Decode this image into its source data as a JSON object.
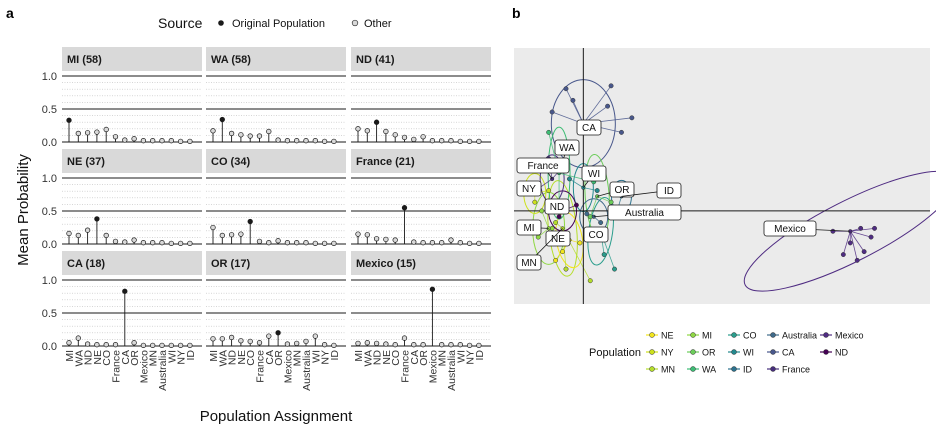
{
  "panel_a": {
    "label": "a",
    "legend": {
      "title": "Source",
      "items": [
        {
          "label": "Original Population",
          "color": "#1a1a1a"
        },
        {
          "label": "Other",
          "color": "#d9d9d9"
        }
      ]
    },
    "ylabel": "Mean Probability",
    "xlabel": "Population Assignment"
  },
  "panel_b": {
    "label": "b",
    "legend": {
      "title": "Population",
      "items": [
        {
          "label": "NE",
          "color": "#f2e51d"
        },
        {
          "label": "MI",
          "color": "#8fd744"
        },
        {
          "label": "CO",
          "color": "#2a9d8c"
        },
        {
          "label": "Australia",
          "color": "#3f6a8a"
        },
        {
          "label": "Mexico",
          "color": "#4f2c82"
        },
        {
          "label": "NY",
          "color": "#cde11d"
        },
        {
          "label": "OR",
          "color": "#6ccd5a"
        },
        {
          "label": "WI",
          "color": "#23888e"
        },
        {
          "label": "CA",
          "color": "#48578b"
        },
        {
          "label": "ND",
          "color": "#440154"
        },
        {
          "label": "MN",
          "color": "#b5de2b"
        },
        {
          "label": "WA",
          "color": "#3dbc74"
        },
        {
          "label": "ID",
          "color": "#2c728e"
        },
        {
          "label": "France",
          "color": "#472e7c"
        }
      ]
    },
    "point_labels": [
      "CA",
      "WA",
      "France",
      "WI",
      "NY",
      "OR",
      "ID",
      "ND",
      "Australia",
      "Mexico",
      "MI",
      "NE",
      "CO",
      "MN"
    ]
  },
  "chart_data": [
    {
      "type": "lollipop",
      "title": "",
      "xlabel": "Population Assignment",
      "ylabel": "Mean Probability",
      "ylim": [
        0,
        1
      ],
      "yticks": [
        0.0,
        0.5,
        1.0
      ],
      "yticklabels": [
        "0.0",
        "0.5",
        "1.0"
      ],
      "categories": [
        "MI",
        "WA",
        "ND",
        "NE",
        "CO",
        "France",
        "CA",
        "OR",
        "Mexico",
        "MN",
        "Australia",
        "WI",
        "NY",
        "ID"
      ],
      "facets": [
        {
          "title": "MI (58)",
          "original": "MI",
          "values": [
            0.33,
            0.13,
            0.14,
            0.15,
            0.19,
            0.08,
            0.03,
            0.05,
            0.02,
            0.02,
            0.02,
            0.02,
            0.01,
            0.01
          ]
        },
        {
          "title": "WA (58)",
          "original": "WA",
          "values": [
            0.17,
            0.34,
            0.13,
            0.11,
            0.09,
            0.09,
            0.16,
            0.03,
            0.02,
            0.02,
            0.02,
            0.02,
            0.01,
            0.01
          ]
        },
        {
          "title": "ND (41)",
          "original": "ND",
          "values": [
            0.2,
            0.17,
            0.3,
            0.16,
            0.11,
            0.07,
            0.04,
            0.08,
            0.02,
            0.02,
            0.02,
            0.01,
            0.01,
            0.01
          ]
        },
        {
          "title": "NE (37)",
          "original": "NE",
          "values": [
            0.16,
            0.13,
            0.21,
            0.38,
            0.13,
            0.04,
            0.03,
            0.06,
            0.02,
            0.02,
            0.02,
            0.01,
            0.01,
            0.01
          ]
        },
        {
          "title": "CO (34)",
          "original": "CO",
          "values": [
            0.25,
            0.13,
            0.14,
            0.15,
            0.34,
            0.04,
            0.02,
            0.05,
            0.02,
            0.02,
            0.02,
            0.01,
            0.01,
            0.01
          ]
        },
        {
          "title": "France (21)",
          "original": "France",
          "values": [
            0.15,
            0.14,
            0.08,
            0.07,
            0.06,
            0.55,
            0.03,
            0.02,
            0.02,
            0.02,
            0.06,
            0.02,
            0.01,
            0.01
          ]
        },
        {
          "title": "CA (18)",
          "original": "CA",
          "values": [
            0.05,
            0.12,
            0.03,
            0.02,
            0.02,
            0.02,
            0.83,
            0.05,
            0.01,
            0.01,
            0.01,
            0.01,
            0.01,
            0.01
          ]
        },
        {
          "title": "OR (17)",
          "original": "OR",
          "values": [
            0.11,
            0.11,
            0.13,
            0.08,
            0.07,
            0.05,
            0.15,
            0.2,
            0.03,
            0.04,
            0.07,
            0.15,
            0.02,
            0.01
          ]
        },
        {
          "title": "Mexico (15)",
          "original": "Mexico",
          "values": [
            0.04,
            0.05,
            0.04,
            0.03,
            0.02,
            0.12,
            0.02,
            0.02,
            0.86,
            0.02,
            0.02,
            0.02,
            0.01,
            0.01
          ]
        }
      ],
      "legend": {
        "title": "Source",
        "placement": "top",
        "entries": [
          "Original Population",
          "Other"
        ]
      }
    },
    {
      "type": "scatter",
      "subtype": "ordination-biplot",
      "title": "",
      "xlim": [
        -1,
        5
      ],
      "ylim": [
        -1.6,
        2.8
      ],
      "grid": false,
      "legend": {
        "title": "Population",
        "placement": "bottom"
      },
      "centroids": [
        {
          "group": "NE",
          "x": -0.2,
          "y": -0.5
        },
        {
          "group": "MI",
          "x": -0.5,
          "y": -0.3
        },
        {
          "group": "ND",
          "x": -0.3,
          "y": 0.0
        },
        {
          "group": "NY",
          "x": -0.7,
          "y": 0.3
        },
        {
          "group": "OR",
          "x": 0.2,
          "y": 0.25
        },
        {
          "group": "MN",
          "x": -0.3,
          "y": -0.3
        },
        {
          "group": "WA",
          "x": -0.35,
          "y": 0.65
        },
        {
          "group": "CO",
          "x": 0.25,
          "y": -0.35
        },
        {
          "group": "WI",
          "x": 0.0,
          "y": 0.4
        },
        {
          "group": "ID",
          "x": 0.55,
          "y": 0.25
        },
        {
          "group": "Australia",
          "x": 0.15,
          "y": -0.1
        },
        {
          "group": "CA",
          "x": 0.0,
          "y": 1.5
        },
        {
          "group": "France",
          "x": -0.45,
          "y": 0.55
        },
        {
          "group": "Mexico",
          "x": 3.85,
          "y": -0.35
        }
      ],
      "points": [
        {
          "group": "CA",
          "x": 0.4,
          "y": 2.15
        },
        {
          "group": "CA",
          "x": -0.25,
          "y": 2.1
        },
        {
          "group": "CA",
          "x": 0.7,
          "y": 1.6
        },
        {
          "group": "CA",
          "x": -0.45,
          "y": 1.7
        },
        {
          "group": "CA",
          "x": 0.35,
          "y": 1.8
        },
        {
          "group": "CA",
          "x": 0.55,
          "y": 1.35
        },
        {
          "group": "CA",
          "x": -0.15,
          "y": 1.9
        },
        {
          "group": "Mexico",
          "x": 4.0,
          "y": -0.3
        },
        {
          "group": "Mexico",
          "x": 4.15,
          "y": -0.45
        },
        {
          "group": "Mexico",
          "x": 3.85,
          "y": -0.55
        },
        {
          "group": "Mexico",
          "x": 4.05,
          "y": -0.7
        },
        {
          "group": "Mexico",
          "x": 3.75,
          "y": -0.75
        },
        {
          "group": "Mexico",
          "x": 4.2,
          "y": -0.3
        },
        {
          "group": "Mexico",
          "x": 3.95,
          "y": -0.85
        },
        {
          "group": "Mexico",
          "x": 3.6,
          "y": -0.35
        },
        {
          "group": "France",
          "x": -0.5,
          "y": 0.9
        },
        {
          "group": "France",
          "x": -0.75,
          "y": 0.3
        },
        {
          "group": "France",
          "x": -0.3,
          "y": 0.75
        },
        {
          "group": "WA",
          "x": -0.5,
          "y": 1.35
        },
        {
          "group": "WA",
          "x": 0.15,
          "y": 0.5
        },
        {
          "group": "WA",
          "x": -0.35,
          "y": 0.05
        },
        {
          "group": "MI",
          "x": -0.65,
          "y": -0.45
        },
        {
          "group": "MI",
          "x": -0.45,
          "y": -0.3
        },
        {
          "group": "MI",
          "x": -0.6,
          "y": 0.0
        },
        {
          "group": "NE",
          "x": -0.3,
          "y": -0.7
        },
        {
          "group": "NE",
          "x": -0.05,
          "y": -0.55
        },
        {
          "group": "NE",
          "x": -0.4,
          "y": -0.85
        },
        {
          "group": "ND",
          "x": -0.35,
          "y": -0.1
        },
        {
          "group": "ND",
          "x": -0.1,
          "y": 0.1
        },
        {
          "group": "NY",
          "x": -0.7,
          "y": 0.15
        },
        {
          "group": "NY",
          "x": -0.5,
          "y": 0.35
        },
        {
          "group": "MN",
          "x": -0.25,
          "y": -1.0
        },
        {
          "group": "MN",
          "x": 0.1,
          "y": -1.2
        },
        {
          "group": "MN",
          "x": -0.4,
          "y": -0.2
        },
        {
          "group": "CO",
          "x": 0.3,
          "y": -0.75
        },
        {
          "group": "CO",
          "x": 0.45,
          "y": -1.0
        },
        {
          "group": "CO",
          "x": 0.05,
          "y": -0.45
        },
        {
          "group": "WI",
          "x": 0.2,
          "y": 0.35
        },
        {
          "group": "WI",
          "x": -0.2,
          "y": 0.55
        },
        {
          "group": "OR",
          "x": 0.4,
          "y": 0.15
        },
        {
          "group": "OR",
          "x": 0.1,
          "y": -0.1
        },
        {
          "group": "ID",
          "x": 0.6,
          "y": 0.35
        },
        {
          "group": "ID",
          "x": 0.5,
          "y": 0.05
        },
        {
          "group": "Australia",
          "x": 0.25,
          "y": -0.2
        },
        {
          "group": "Australia",
          "x": 0.05,
          "y": -0.05
        }
      ]
    }
  ]
}
